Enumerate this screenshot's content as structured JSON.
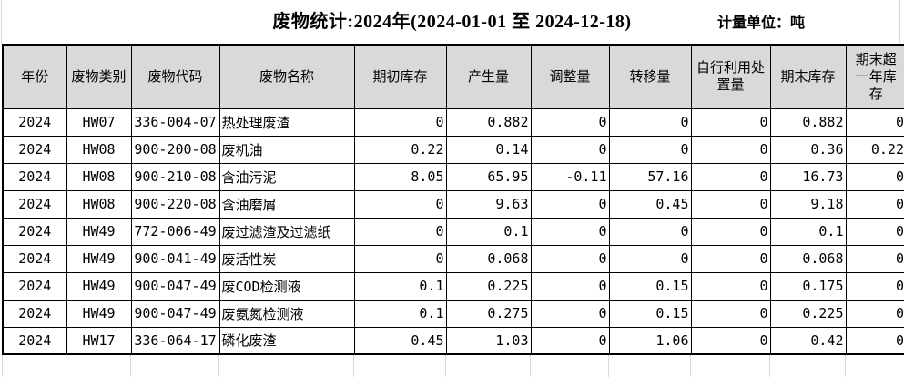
{
  "title": "废物统计:2024年(2024-01-01 至 2024-12-18)",
  "unit_label": "计量单位：吨",
  "colors": {
    "header_bg": "#d9d9d9",
    "table_border": "#000000",
    "faint_grid": "#d9d9d9",
    "background": "#ffffff"
  },
  "table": {
    "columns": [
      "年份",
      "废物类别",
      "废物代码",
      "废物名称",
      "期初库存",
      "产生量",
      "调整量",
      "转移量",
      "自行利用处置量",
      "期末库存",
      "期末超一年库存"
    ],
    "rows": [
      [
        "2024",
        "HW07",
        "336-004-07",
        "热处理废渣",
        "0",
        "0.882",
        "0",
        "0",
        "0",
        "0.882",
        "0"
      ],
      [
        "2024",
        "HW08",
        "900-200-08",
        "废机油",
        "0.22",
        "0.14",
        "0",
        "0",
        "0",
        "0.36",
        "0.22"
      ],
      [
        "2024",
        "HW08",
        "900-210-08",
        "含油污泥",
        "8.05",
        "65.95",
        "-0.11",
        "57.16",
        "0",
        "16.73",
        "0"
      ],
      [
        "2024",
        "HW08",
        "900-220-08",
        "含油磨屑",
        "0",
        "9.63",
        "0",
        "0.45",
        "0",
        "9.18",
        "0"
      ],
      [
        "2024",
        "HW49",
        "772-006-49",
        "废过滤渣及过滤纸",
        "0",
        "0.1",
        "0",
        "0",
        "0",
        "0.1",
        "0"
      ],
      [
        "2024",
        "HW49",
        "900-041-49",
        "废活性炭",
        "0",
        "0.068",
        "0",
        "0",
        "0",
        "0.068",
        "0"
      ],
      [
        "2024",
        "HW49",
        "900-047-49",
        "废COD检测液",
        "0.1",
        "0.225",
        "0",
        "0.15",
        "0",
        "0.175",
        "0"
      ],
      [
        "2024",
        "HW49",
        "900-047-49",
        "废氨氮检测液",
        "0.1",
        "0.275",
        "0",
        "0.15",
        "0",
        "0.225",
        "0"
      ],
      [
        "2024",
        "HW17",
        "336-064-17",
        "磷化废渣",
        "0.45",
        "1.03",
        "0",
        "1.06",
        "0",
        "0.42",
        "0"
      ]
    ]
  }
}
